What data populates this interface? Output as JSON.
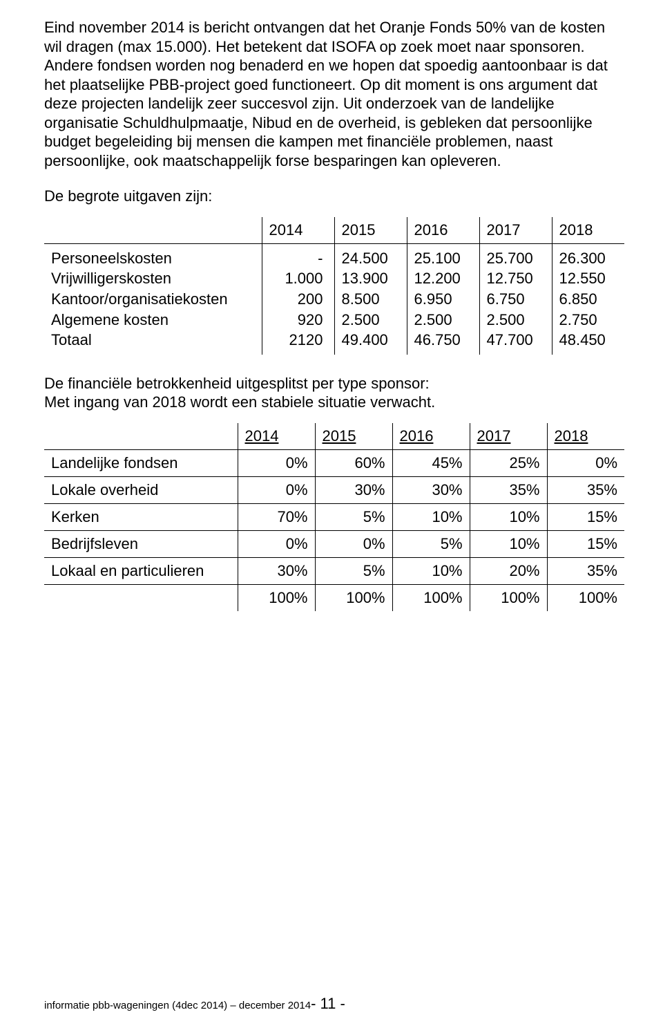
{
  "paragraph1": "Eind november  2014 is bericht ontvangen dat het  Oranje Fonds 50% van de kosten wil dragen (max 15.000). Het betekent dat ISOFA op zoek moet naar sponsoren. Andere fondsen worden nog benaderd en we hopen dat spoedig aantoonbaar is dat het plaatselijke PBB-project goed functioneert. Op dit moment is ons argument dat deze projecten landelijk zeer succesvol zijn. Uit onderzoek van de landelijke organisatie Schuldhulpmaatje, Nibud en de overheid, is gebleken dat persoonlijke budget begeleiding bij mensen die kampen met financiële problemen, naast persoonlijke, ook maatschappelijk forse besparingen kan opleveren.",
  "heading1": "De begrote uitgaven zijn:",
  "table1": {
    "years": [
      "2014",
      "2015",
      "2016",
      "2017",
      "2018"
    ],
    "row_labels": [
      "Personeelskosten",
      "Vrijwilligerskosten",
      "Kantoor/organisatiekosten",
      "Algemene kosten",
      "Totaal"
    ],
    "col2014": [
      "-",
      "1.000",
      "200",
      "920",
      "2120"
    ],
    "col2015": [
      "24.500",
      "13.900",
      "8.500",
      "2.500",
      "49.400"
    ],
    "col2016": [
      "25.100",
      "12.200",
      "6.950",
      "2.500",
      "46.750"
    ],
    "col2017": [
      "25.700",
      "12.750",
      "6.750",
      "2.500",
      "47.700"
    ],
    "col2018": [
      "26.300",
      "12.550",
      "6.850",
      "2.750",
      "48.450"
    ]
  },
  "paragraph2": "De financiële betrokkenheid uitgesplitst per type sponsor:\nMet ingang van 2018 wordt een stabiele situatie verwacht.",
  "table2": {
    "years": [
      "2014",
      "2015",
      "2016",
      "2017",
      "2018"
    ],
    "rows": [
      {
        "label": "Landelijke fondsen",
        "vals": [
          "0%",
          "60%",
          "45%",
          "25%",
          "0%"
        ]
      },
      {
        "label": "Lokale overheid",
        "vals": [
          "0%",
          "30%",
          "30%",
          "35%",
          "35%"
        ]
      },
      {
        "label": "Kerken",
        "vals": [
          "70%",
          "5%",
          "10%",
          "10%",
          "15%"
        ]
      },
      {
        "label": "Bedrijfsleven",
        "vals": [
          "0%",
          "0%",
          "5%",
          "10%",
          "15%"
        ]
      },
      {
        "label": "Lokaal en particulieren",
        "vals": [
          "30%",
          "5%",
          "10%",
          "20%",
          "35%"
        ]
      },
      {
        "label": "",
        "vals": [
          "100%",
          "100%",
          "100%",
          "100%",
          "100%"
        ]
      }
    ]
  },
  "footer": {
    "prefix": "informatie pbb-wageningen (4dec 2014) – december 2014",
    "page": "- 11 -"
  }
}
